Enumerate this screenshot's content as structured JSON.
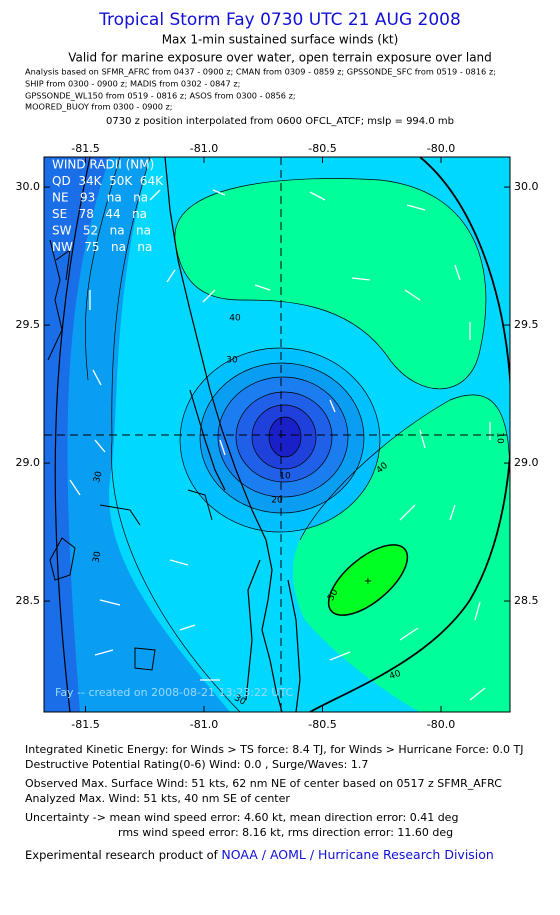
{
  "header": {
    "title": "Tropical Storm Fay 0730 UTC 21 AUG 2008",
    "subtitle_lines": [
      "Max 1-min sustained surface winds (kt)",
      "Valid for marine exposure over water, open terrain exposure over land"
    ],
    "analysis_lines": [
      "Analysis based on   SFMR_AFRC  from 0437 - 0900 z;  CMAN  from 0309 - 0859 z;  GPSSONDE_SFC  from 0519 - 0816 z;",
      "SHIP  from 0300 - 0900 z;   MADIS  from 0302 - 0847 z;",
      "GPSSONDE_WL150  from 0519 - 0816 z;   ASOS  from 0300 - 0856 z;",
      "MOORED_BUOY  from 0300 - 0900 z;"
    ],
    "position_line": "0730 z position interpolated from 0600 OFCL_ATCF; mslp = 994.0 mb"
  },
  "map": {
    "xlim": [
      -81.675,
      -79.709
    ],
    "ylim": [
      28.098,
      30.109
    ],
    "xticks": [
      -81.5,
      {
        "value": -81.0,
        "label": "-81.0"
      },
      -80.5,
      {
        "value": -80.0,
        "label": "-80.0"
      }
    ],
    "yticks": [
      28.5,
      {
        "value": 29.0,
        "label": "29.0"
      },
      29.5,
      {
        "value": 30.0,
        "label": "30.0"
      }
    ],
    "wind_radii": [
      "WIND RADII (NM)",
      "QD  34K  50K  64K",
      "NE   93   na   na",
      "SE   78   44   na",
      "SW   52   na   na",
      "NW   75   na   na"
    ],
    "contour_labels": [
      40,
      30,
      10,
      20,
      30,
      30,
      40,
      50,
      40,
      30,
      10
    ],
    "watermark": "Fay -- created on 2008-08-21 13:23:22 UTC"
  },
  "footer": {
    "lines": [
      "Integrated Kinetic Energy:  for Winds > TS force: 8.4 TJ,  for Winds > Hurricane Force: 0.0 TJ",
      "Destructive Potential Rating(0-6)   Wind: 0.0 , Surge/Waves: 1.7",
      "Observed Max. Surface Wind: 51 kts, 62 nm NE of center based on 0517 z SFMR_AFRC",
      "Analyzed Max. Wind: 51 kts, 40 nm SE of center",
      "Uncertainty -> mean wind speed error: 4.60 kt,   mean direction error: 0.41 deg",
      "rms wind speed error: 8.16 kt,   rms direction error: 11.60 deg"
    ],
    "credit": "Experimental research product of ",
    "link": "NOAA / AOML / Hurricane Research Division"
  }
}
